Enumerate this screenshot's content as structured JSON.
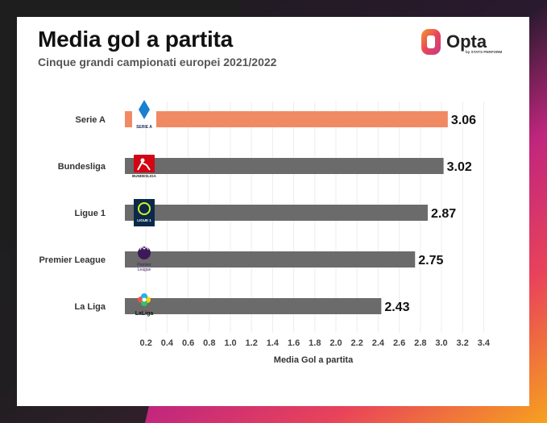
{
  "header": {
    "title": "Media gol a partita",
    "subtitle": "Cinque grandi campionati europei 2021/2022"
  },
  "brand": {
    "name": "Opta",
    "tagline": "by STATS PERFORM",
    "logo_colors": [
      "#e9455a",
      "#f29b2a",
      "#c23b8c"
    ]
  },
  "colors": {
    "highlight_bar": "#f08a62",
    "default_bar": "#6b6b6b",
    "card_bg": "#ffffff"
  },
  "league_logos": {
    "Serie A": {
      "icon": "serie-a-logo",
      "text": "SERIE A"
    },
    "Bundesliga": {
      "icon": "bundesliga-logo",
      "text": "BUNDESLIGA"
    },
    "Ligue 1": {
      "icon": "ligue-1-logo",
      "text": "LIGUE 1"
    },
    "Premier League": {
      "icon": "premier-league-logo",
      "text": "Premier League"
    },
    "La Liga": {
      "icon": "laliga-logo",
      "text": "LaLiga"
    }
  },
  "chart_data": {
    "type": "bar",
    "orientation": "horizontal",
    "categories": [
      "Serie A",
      "Bundesliga",
      "Ligue 1",
      "Premier League",
      "La Liga"
    ],
    "values": [
      3.06,
      3.02,
      2.87,
      2.75,
      2.43
    ],
    "value_labels": [
      "3.06",
      "3.02",
      "2.87",
      "2.75",
      "2.43"
    ],
    "highlight": "Serie A",
    "xlabel": "Media Gol a partita",
    "ylabel": "",
    "xlim": [
      0,
      3.4
    ],
    "xticks": [
      "0.2",
      "0.4",
      "0.6",
      "0.8",
      "1.0",
      "1.2",
      "1.4",
      "1.6",
      "1.8",
      "2.0",
      "2.2",
      "2.4",
      "2.6",
      "2.8",
      "3.0",
      "3.2",
      "3.4"
    ],
    "grid": true
  }
}
